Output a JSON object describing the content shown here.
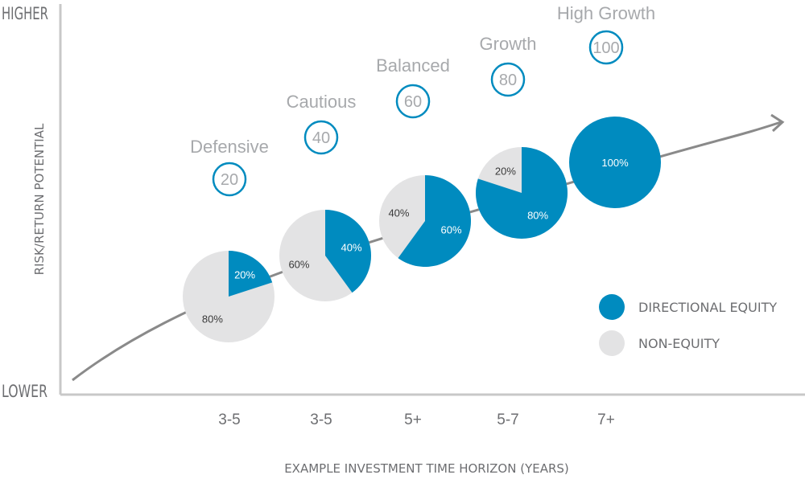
{
  "chart_data": {
    "type": "pie",
    "ylabel": "RISK/RETURN POTENTIAL",
    "y_high_label": "HIGHER",
    "y_low_label": "LOWER",
    "xlabel": "EXAMPLE INVESTMENT TIME HORIZON (YEARS)",
    "legend": [
      {
        "name": "DIRECTIONAL EQUITY",
        "color": "#008bbf"
      },
      {
        "name": "NON-EQUITY",
        "color": "#e3e3e4"
      }
    ],
    "legend_position": "right",
    "profiles": [
      {
        "name": "Defensive",
        "level": "20",
        "horizon": "3-5",
        "equity": 20,
        "non_equity": 80,
        "equity_label": "20%",
        "non_equity_label": "80%"
      },
      {
        "name": "Cautious",
        "level": "40",
        "horizon": "3-5",
        "equity": 40,
        "non_equity": 60,
        "equity_label": "40%",
        "non_equity_label": "60%"
      },
      {
        "name": "Balanced",
        "level": "60",
        "horizon": "5+",
        "equity": 60,
        "non_equity": 40,
        "equity_label": "60%",
        "non_equity_label": "40%"
      },
      {
        "name": "Growth",
        "level": "80",
        "horizon": "5-7",
        "equity": 80,
        "non_equity": 20,
        "equity_label": "80%",
        "non_equity_label": "20%"
      },
      {
        "name": "High Growth",
        "level": "100",
        "horizon": "7+",
        "equity": 100,
        "non_equity": 0,
        "equity_label": "100%",
        "non_equity_label": ""
      }
    ]
  }
}
